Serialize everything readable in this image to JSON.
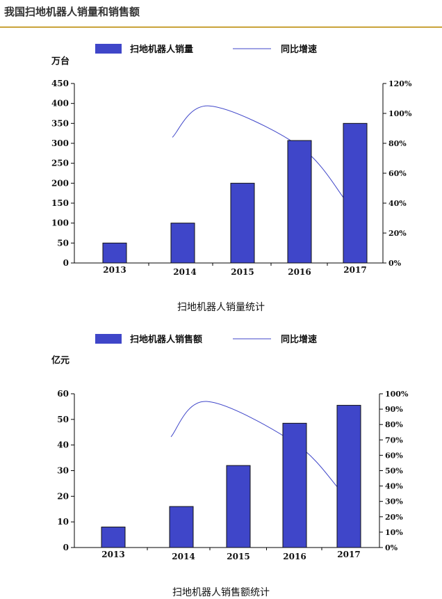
{
  "header": {
    "title": "我国扫地机器人销量和销售额"
  },
  "chart_data": [
    {
      "type": "bar",
      "title": "扫地机器人销量统计",
      "ylabel": "万台",
      "categories": [
        "2013",
        "2014",
        "2015",
        "2016",
        "2017"
      ],
      "series": [
        {
          "name": "扫地机器人销量",
          "type": "bar",
          "axis": "left",
          "color": "#3f46c9",
          "values": [
            50,
            100,
            200,
            307,
            350
          ]
        },
        {
          "name": "同比增速",
          "type": "line",
          "axis": "right",
          "color": "#3f46c9",
          "values": [
            null,
            0.84,
            1.05,
            0.78,
            0.42
          ]
        }
      ],
      "ylim": [
        0,
        450
      ],
      "yticks": [
        0,
        50,
        100,
        150,
        200,
        250,
        300,
        350,
        400,
        450
      ],
      "y2lim": [
        0,
        1.2
      ],
      "y2ticks": [
        "0%",
        "20%",
        "40%",
        "60%",
        "80%",
        "100%",
        "120%"
      ],
      "legend_position": "top",
      "grid": false
    },
    {
      "type": "bar",
      "title": "扫地机器人销售额统计",
      "ylabel": "亿元",
      "categories": [
        "2013",
        "2014",
        "2015",
        "2016",
        "2017"
      ],
      "series": [
        {
          "name": "扫地机器人销售额",
          "type": "bar",
          "axis": "left",
          "color": "#3f46c9",
          "values": [
            8,
            16,
            32,
            48.5,
            55.5
          ]
        },
        {
          "name": "同比增速",
          "type": "line",
          "axis": "right",
          "color": "#3f46c9",
          "values": [
            null,
            0.72,
            0.95,
            0.68,
            0.38
          ]
        }
      ],
      "ylim": [
        0,
        60
      ],
      "yticks": [
        0,
        10,
        20,
        30,
        40,
        50,
        60
      ],
      "y2lim": [
        0,
        1.0
      ],
      "y2ticks": [
        "0%",
        "10%",
        "20%",
        "30%",
        "40%",
        "50%",
        "60%",
        "70%",
        "80%",
        "90%",
        "100%"
      ],
      "legend_position": "top",
      "grid": false
    }
  ]
}
